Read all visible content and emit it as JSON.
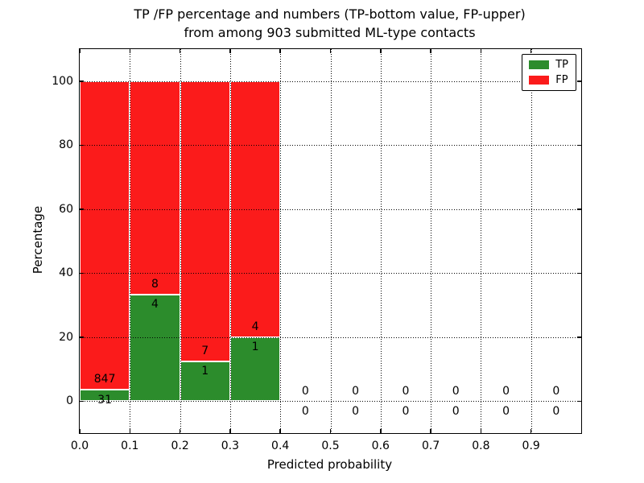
{
  "figure": {
    "title": "TP /FP percentage and numbers (TP-bottom value, FP-upper)\nfrom among 903 submitted ML-type contacts"
  },
  "chart_data": {
    "type": "bar",
    "stacked": true,
    "title": "TP /FP percentage and numbers (TP-bottom value, FP-upper) from among 903 submitted ML-type contacts",
    "xlabel": "Predicted probability",
    "ylabel": "Percentage",
    "xlim": [
      0.0,
      1.0
    ],
    "ylim": [
      -10,
      110
    ],
    "xticks": [
      "0.0",
      "0.1",
      "0.2",
      "0.3",
      "0.4",
      "0.5",
      "0.6",
      "0.7",
      "0.8",
      "0.9"
    ],
    "yticks": [
      0,
      20,
      40,
      60,
      80,
      100
    ],
    "grid": true,
    "grid_style": "dotted",
    "total_submitted_contacts": 903,
    "colors": {
      "tp": "#2c8c2c",
      "fp": "#fb1b1b",
      "bar_edge": "#ffffff"
    },
    "legend": {
      "position": "upper-right",
      "entries": [
        {
          "label": "TP",
          "color": "#2c8c2c"
        },
        {
          "label": "FP",
          "color": "#fb1b1b"
        }
      ]
    },
    "bins": [
      {
        "range": [
          0.0,
          0.1
        ],
        "tp_count": 31,
        "fp_count": 847,
        "tp_pct": 3.53,
        "fp_pct": 96.47
      },
      {
        "range": [
          0.1,
          0.2
        ],
        "tp_count": 4,
        "fp_count": 8,
        "tp_pct": 33.33,
        "fp_pct": 66.67
      },
      {
        "range": [
          0.2,
          0.3
        ],
        "tp_count": 1,
        "fp_count": 7,
        "tp_pct": 12.5,
        "fp_pct": 87.5
      },
      {
        "range": [
          0.3,
          0.4
        ],
        "tp_count": 1,
        "fp_count": 4,
        "tp_pct": 20.0,
        "fp_pct": 80.0
      },
      {
        "range": [
          0.4,
          0.5
        ],
        "tp_count": 0,
        "fp_count": 0,
        "tp_pct": 0,
        "fp_pct": 0
      },
      {
        "range": [
          0.5,
          0.6
        ],
        "tp_count": 0,
        "fp_count": 0,
        "tp_pct": 0,
        "fp_pct": 0
      },
      {
        "range": [
          0.6,
          0.7
        ],
        "tp_count": 0,
        "fp_count": 0,
        "tp_pct": 0,
        "fp_pct": 0
      },
      {
        "range": [
          0.7,
          0.8
        ],
        "tp_count": 0,
        "fp_count": 0,
        "tp_pct": 0,
        "fp_pct": 0
      },
      {
        "range": [
          0.8,
          0.9
        ],
        "tp_count": 0,
        "fp_count": 0,
        "tp_pct": 0,
        "fp_pct": 0
      },
      {
        "range": [
          0.9,
          1.0
        ],
        "tp_count": 0,
        "fp_count": 0,
        "tp_pct": 0,
        "fp_pct": 0
      }
    ]
  }
}
